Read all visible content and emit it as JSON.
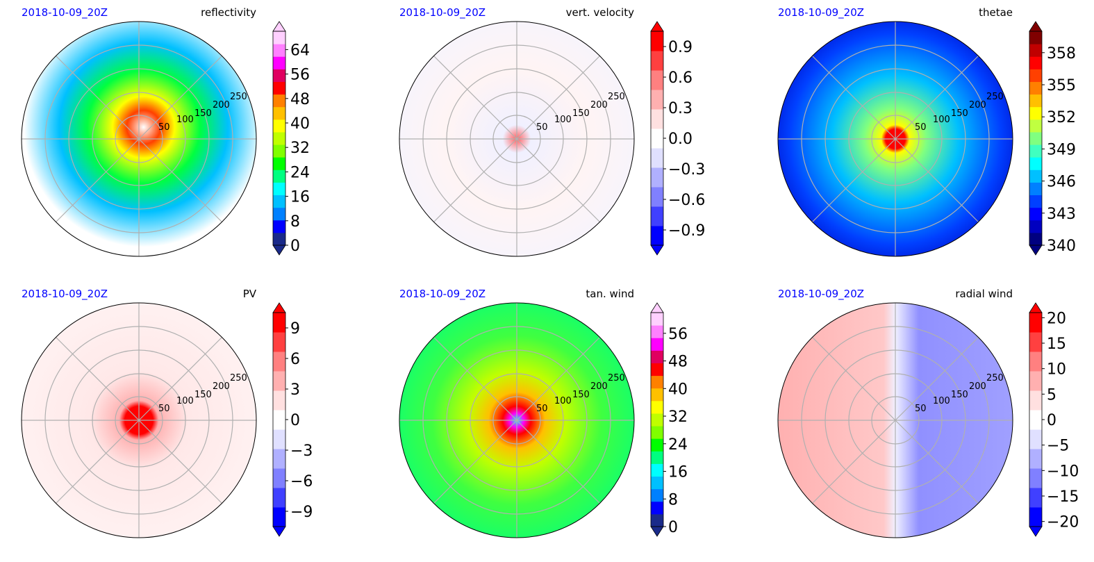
{
  "chart_data": [
    {
      "type": "heatmap",
      "projection": "polar",
      "date": "2018-10-09_20Z",
      "title": "reflectivity",
      "ring_labels": [
        "50",
        "100",
        "150",
        "200",
        "250"
      ],
      "colorbar": {
        "ticks": [
          "0",
          "8",
          "16",
          "24",
          "32",
          "40",
          "48",
          "56",
          "64"
        ],
        "range": [
          0,
          70
        ],
        "extend": "both",
        "colors": [
          "#1a2a8a",
          "#0000ff",
          "#0080ff",
          "#00c0ff",
          "#00ffff",
          "#00ff80",
          "#00ff00",
          "#80ff00",
          "#c0ff00",
          "#ffff00",
          "#ffc000",
          "#ff8000",
          "#ff0000",
          "#e00060",
          "#ff00ff",
          "#ff80ff",
          "#ffd0ff"
        ]
      },
      "grid": true
    },
    {
      "type": "heatmap",
      "projection": "polar",
      "date": "2018-10-09_20Z",
      "title": "vert. velocity",
      "ring_labels": [
        "50",
        "100",
        "150",
        "200",
        "250"
      ],
      "colorbar": {
        "ticks": [
          "−0.9",
          "−0.6",
          "−0.3",
          "0.0",
          "0.3",
          "0.6",
          "0.9"
        ],
        "range": [
          -1.05,
          1.05
        ],
        "extend": "both",
        "colors": [
          "#0000ff",
          "#4040ff",
          "#8080ff",
          "#b0b0ff",
          "#e0e0ff",
          "#ffffff",
          "#ffe0e0",
          "#ffb0b0",
          "#ff8080",
          "#ff4040",
          "#ff0000"
        ]
      },
      "grid": true
    },
    {
      "type": "heatmap",
      "projection": "polar",
      "date": "2018-10-09_20Z",
      "title": "thetae",
      "ring_labels": [
        "50",
        "100",
        "150",
        "200",
        "250"
      ],
      "colorbar": {
        "ticks": [
          "340",
          "343",
          "346",
          "349",
          "352",
          "355",
          "358"
        ],
        "range": [
          340,
          360
        ],
        "extend": "both",
        "colors": [
          "#000080",
          "#0000c0",
          "#0000ff",
          "#0040ff",
          "#0080ff",
          "#00c0ff",
          "#00ffff",
          "#40ffc0",
          "#80ff80",
          "#c0ff40",
          "#ffff00",
          "#ffc000",
          "#ff8000",
          "#ff4000",
          "#ff0000",
          "#c00000",
          "#800000"
        ]
      },
      "grid": true
    },
    {
      "type": "heatmap",
      "projection": "polar",
      "date": "2018-10-09_20Z",
      "title": "PV",
      "ring_labels": [
        "50",
        "100",
        "150",
        "200",
        "250"
      ],
      "colorbar": {
        "ticks": [
          "−9",
          "−6",
          "−3",
          "0",
          "3",
          "6",
          "9"
        ],
        "range": [
          -10.5,
          10.5
        ],
        "extend": "both",
        "colors": [
          "#0000ff",
          "#4040ff",
          "#8080ff",
          "#b0b0ff",
          "#e0e0ff",
          "#ffffff",
          "#ffe0e0",
          "#ffb0b0",
          "#ff8080",
          "#ff4040",
          "#ff0000"
        ]
      },
      "grid": true
    },
    {
      "type": "heatmap",
      "projection": "polar",
      "date": "2018-10-09_20Z",
      "title": "tan. wind",
      "ring_labels": [
        "50",
        "100",
        "150",
        "200",
        "250"
      ],
      "colorbar": {
        "ticks": [
          "0",
          "8",
          "16",
          "24",
          "32",
          "40",
          "48",
          "56"
        ],
        "range": [
          0,
          62
        ],
        "extend": "both",
        "colors": [
          "#1a2a8a",
          "#0000ff",
          "#0080ff",
          "#00c0ff",
          "#00ffff",
          "#00ff80",
          "#00ff00",
          "#80ff00",
          "#c0ff00",
          "#ffff00",
          "#ffc000",
          "#ff8000",
          "#ff0000",
          "#e00060",
          "#ff00ff",
          "#ff80ff",
          "#ffd0ff"
        ]
      },
      "grid": true
    },
    {
      "type": "heatmap",
      "projection": "polar",
      "date": "2018-10-09_20Z",
      "title": "radial wind",
      "ring_labels": [
        "50",
        "100",
        "150",
        "200",
        "250"
      ],
      "colorbar": {
        "ticks": [
          "−20",
          "−15",
          "−10",
          "−5",
          "0",
          "5",
          "10",
          "15",
          "20"
        ],
        "range": [
          -21,
          21
        ],
        "extend": "both",
        "colors": [
          "#0000ff",
          "#4040ff",
          "#8080ff",
          "#b0b0ff",
          "#e0e0ff",
          "#ffffff",
          "#ffe0e0",
          "#ffb0b0",
          "#ff8080",
          "#ff4040",
          "#ff0000"
        ]
      },
      "grid": true
    }
  ]
}
